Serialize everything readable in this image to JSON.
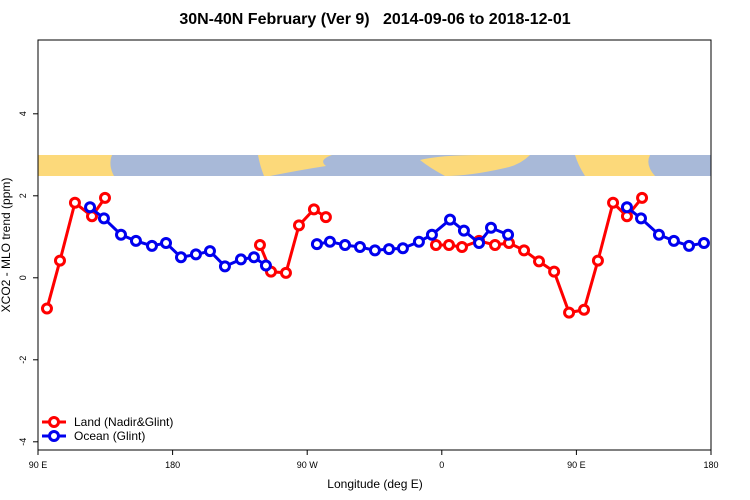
{
  "chart_data": {
    "type": "line",
    "title": "30N-40N February (Ver 9)   2014-09-06 to 2018-12-01",
    "x_label": "Longitude (deg E)",
    "y_label": "XCO2 - MLO trend (ppm)",
    "xlim": [
      90,
      540
    ],
    "xticks": [
      {
        "value": 90,
        "label": "90 E"
      },
      {
        "value": 180,
        "label": "180"
      },
      {
        "value": 270,
        "label": "90 W"
      },
      {
        "value": 360,
        "label": "0"
      },
      {
        "value": 450,
        "label": "90 E"
      },
      {
        "value": 540,
        "label": "180"
      }
    ],
    "ylim": [
      -4.2,
      5.8
    ],
    "yticks": [
      -4,
      -2,
      0,
      2,
      4
    ],
    "legend": "bottom-left",
    "series": [
      {
        "name": "Land (Nadir&Glint)",
        "color": "#ff0000",
        "x": [
          96,
          104.7,
          114.7,
          126.1,
          134.8,
          null,
          238.4,
          245.8,
          255.8,
          264.5,
          274.5,
          282.5,
          null,
          356.1,
          364.8,
          373.5,
          384.9,
          395.6,
          404.9,
          415,
          425,
          435.1,
          445.1,
          455.1,
          464.4,
          474.5,
          483.8,
          493.9
        ],
        "values": [
          -0.75,
          0.42,
          1.83,
          1.5,
          1.95,
          null,
          0.8,
          0.15,
          0.12,
          1.28,
          1.67,
          1.48,
          null,
          0.8,
          0.8,
          0.75,
          0.9,
          0.8,
          0.85,
          0.67,
          0.4,
          0.15,
          -0.85,
          -0.78,
          0.42,
          1.83,
          1.5,
          1.95
        ]
      },
      {
        "name": "Ocean (Glint)",
        "color": "#0000ee",
        "x": [
          124.8,
          134.1,
          145.5,
          155.5,
          166.2,
          175.6,
          185.6,
          195.6,
          205,
          215,
          225.7,
          234.4,
          242.4,
          null,
          276.5,
          285.2,
          295.3,
          305.3,
          315.3,
          324.7,
          334,
          344.7,
          353.4,
          365.5,
          374.8,
          384.9,
          392.9,
          404.3,
          null,
          483.8,
          493.2,
          505.2,
          515.2,
          525.3,
          535.3
        ],
        "values": [
          1.72,
          1.45,
          1.05,
          0.9,
          0.78,
          0.85,
          0.5,
          0.57,
          0.65,
          0.28,
          0.45,
          0.5,
          0.3,
          null,
          0.82,
          0.88,
          0.8,
          0.75,
          0.67,
          0.7,
          0.72,
          0.88,
          1.05,
          1.42,
          1.15,
          0.85,
          1.22,
          1.05,
          null,
          1.72,
          1.45,
          1.05,
          0.9,
          0.78,
          0.85
        ]
      }
    ]
  }
}
